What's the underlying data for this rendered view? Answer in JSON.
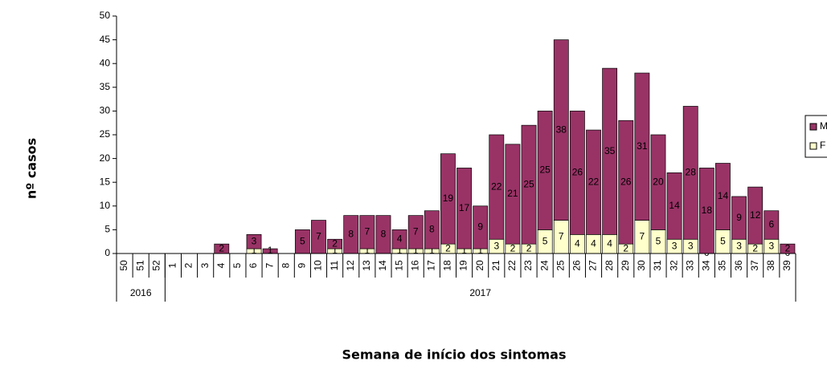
{
  "chart_data": {
    "type": "stacked-bar",
    "y_label": "nº casos",
    "x_label": "Semana de início dos sintomas",
    "categories": [
      "50",
      "51",
      "52",
      "1",
      "2",
      "3",
      "4",
      "5",
      "6",
      "7",
      "8",
      "9",
      "10",
      "11",
      "12",
      "13",
      "14",
      "15",
      "16",
      "17",
      "18",
      "19",
      "20",
      "21",
      "22",
      "23",
      "24",
      "25",
      "26",
      "27",
      "28",
      "29",
      "30",
      "31",
      "32",
      "33",
      "34",
      "35",
      "36",
      "37",
      "38",
      "39"
    ],
    "x_groups": [
      "2016",
      "2016",
      "2016",
      "2017",
      "2017",
      "2017",
      "2017",
      "2017",
      "2017",
      "2017",
      "2017",
      "2017",
      "2017",
      "2017",
      "2017",
      "2017",
      "2017",
      "2017",
      "2017",
      "2017",
      "2017",
      "2017",
      "2017",
      "2017",
      "2017",
      "2017",
      "2017",
      "2017",
      "2017",
      "2017",
      "2017",
      "2017",
      "2017",
      "2017",
      "2017",
      "2017",
      "2017",
      "2017",
      "2017",
      "2017",
      "2017",
      "2017"
    ],
    "series": [
      {
        "name": "F",
        "color": "#ffffcc",
        "values": [
          0,
          0,
          0,
          0,
          0,
          0,
          0,
          0,
          1,
          0,
          0,
          0,
          0,
          1,
          0,
          1,
          0,
          1,
          1,
          1,
          2,
          1,
          1,
          3,
          2,
          2,
          5,
          7,
          4,
          4,
          4,
          2,
          7,
          5,
          3,
          3,
          0,
          5,
          3,
          2,
          3,
          0
        ],
        "value_labels": [
          null,
          null,
          null,
          null,
          null,
          null,
          null,
          null,
          "1",
          null,
          null,
          null,
          null,
          "1",
          null,
          "1",
          null,
          "1",
          "1",
          "1",
          "2",
          "1",
          "1",
          "3",
          "2",
          "2",
          "5",
          "7",
          "4",
          "4",
          "4",
          "2",
          "7",
          "5",
          "3",
          "3",
          "0",
          "5",
          "3",
          "2",
          "3",
          "0"
        ]
      },
      {
        "name": "M",
        "color": "#993366",
        "values": [
          0,
          0,
          0,
          0,
          0,
          0,
          2,
          0,
          3,
          1,
          0,
          5,
          7,
          2,
          8,
          7,
          8,
          4,
          7,
          8,
          19,
          17,
          9,
          22,
          21,
          25,
          25,
          38,
          26,
          22,
          35,
          26,
          31,
          20,
          14,
          28,
          18,
          14,
          9,
          12,
          6,
          2
        ],
        "value_labels": [
          null,
          null,
          null,
          null,
          null,
          null,
          "2",
          null,
          "3",
          "1",
          null,
          "5",
          "7",
          "2",
          "8",
          "7",
          "8",
          "4",
          "7",
          "8",
          "19",
          "17",
          "9",
          "22",
          "21",
          "25",
          "25",
          "38",
          "26",
          "22",
          "35",
          "26",
          "31",
          "20",
          "14",
          "28",
          "18",
          "14",
          "9",
          "12",
          "6",
          "2"
        ]
      }
    ],
    "ylim": [
      0,
      50
    ],
    "yticks": [
      0,
      5,
      10,
      15,
      20,
      25,
      30,
      35,
      40,
      45,
      50
    ]
  }
}
